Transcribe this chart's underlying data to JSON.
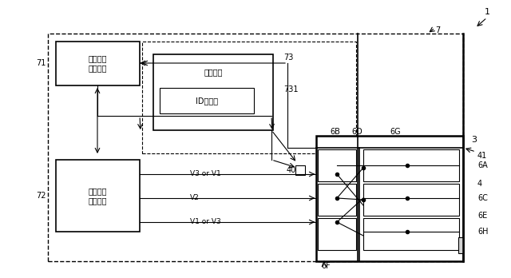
{
  "fig_width": 6.4,
  "fig_height": 3.48,
  "dpi": 100,
  "bg_color": "#ffffff",
  "label_1": "1",
  "label_3": "3",
  "label_4": "4",
  "label_7": "7",
  "label_40": "40",
  "label_41": "41",
  "label_71": "71",
  "label_72": "72",
  "label_73": "73",
  "label_731": "731",
  "label_6A": "6A",
  "label_6B": "6B",
  "label_6C": "6C",
  "label_6D": "6D",
  "label_6E": "6E",
  "label_6F": "6F",
  "label_6G": "6G",
  "label_6H": "6H",
  "box71_text": "検出信号\n処理回路",
  "box72_text": "駆動信号\n生成回路",
  "box73_text": "制御回路",
  "box731_text": "ID読取部",
  "label_V3orV1": "V3 or V1",
  "label_V2": "V2",
  "label_V1orV3": "V1 or V3"
}
